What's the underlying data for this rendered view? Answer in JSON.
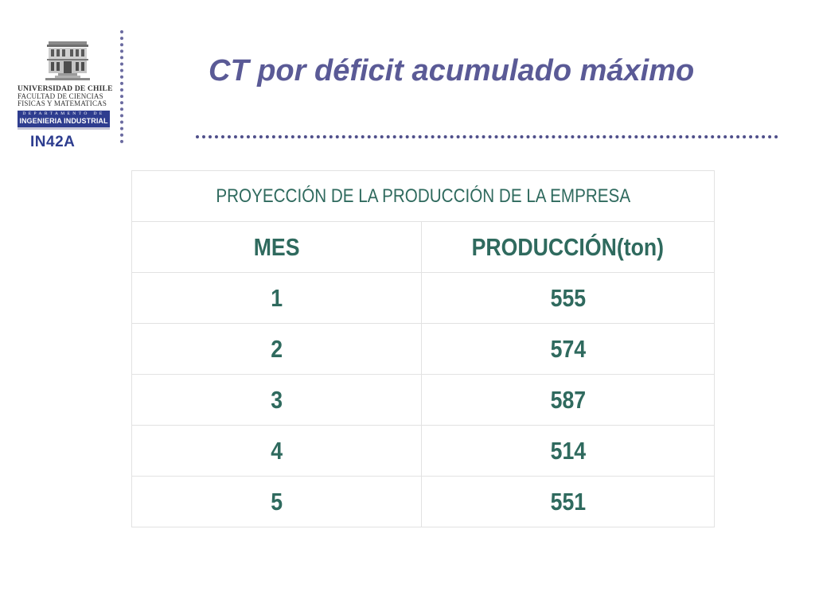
{
  "logo": {
    "line1": "UNIVERSIDAD DE CHILE",
    "line2": "FACULTAD DE CIENCIAS",
    "line3": "FISICAS Y MATEMATICAS",
    "dept_spaced": "DEPARTAMENTO DE",
    "dept_name": "INGENIERIA INDUSTRIAL"
  },
  "course_code": "IN42A",
  "title": "CT por déficit acumulado máximo",
  "table": {
    "caption": "PROYECCIÓN DE LA PRODUCCIÓN DE LA EMPRESA",
    "headers": [
      "MES",
      "PRODUCCIÓN(ton)"
    ],
    "rows": [
      [
        "1",
        "555"
      ],
      [
        "2",
        "574"
      ],
      [
        "3",
        "587"
      ],
      [
        "4",
        "514"
      ],
      [
        "5",
        "551"
      ]
    ]
  },
  "colors": {
    "title": "#5a5a96",
    "table_text": "#2f6a5e",
    "brand_blue": "#2e3d8f"
  }
}
